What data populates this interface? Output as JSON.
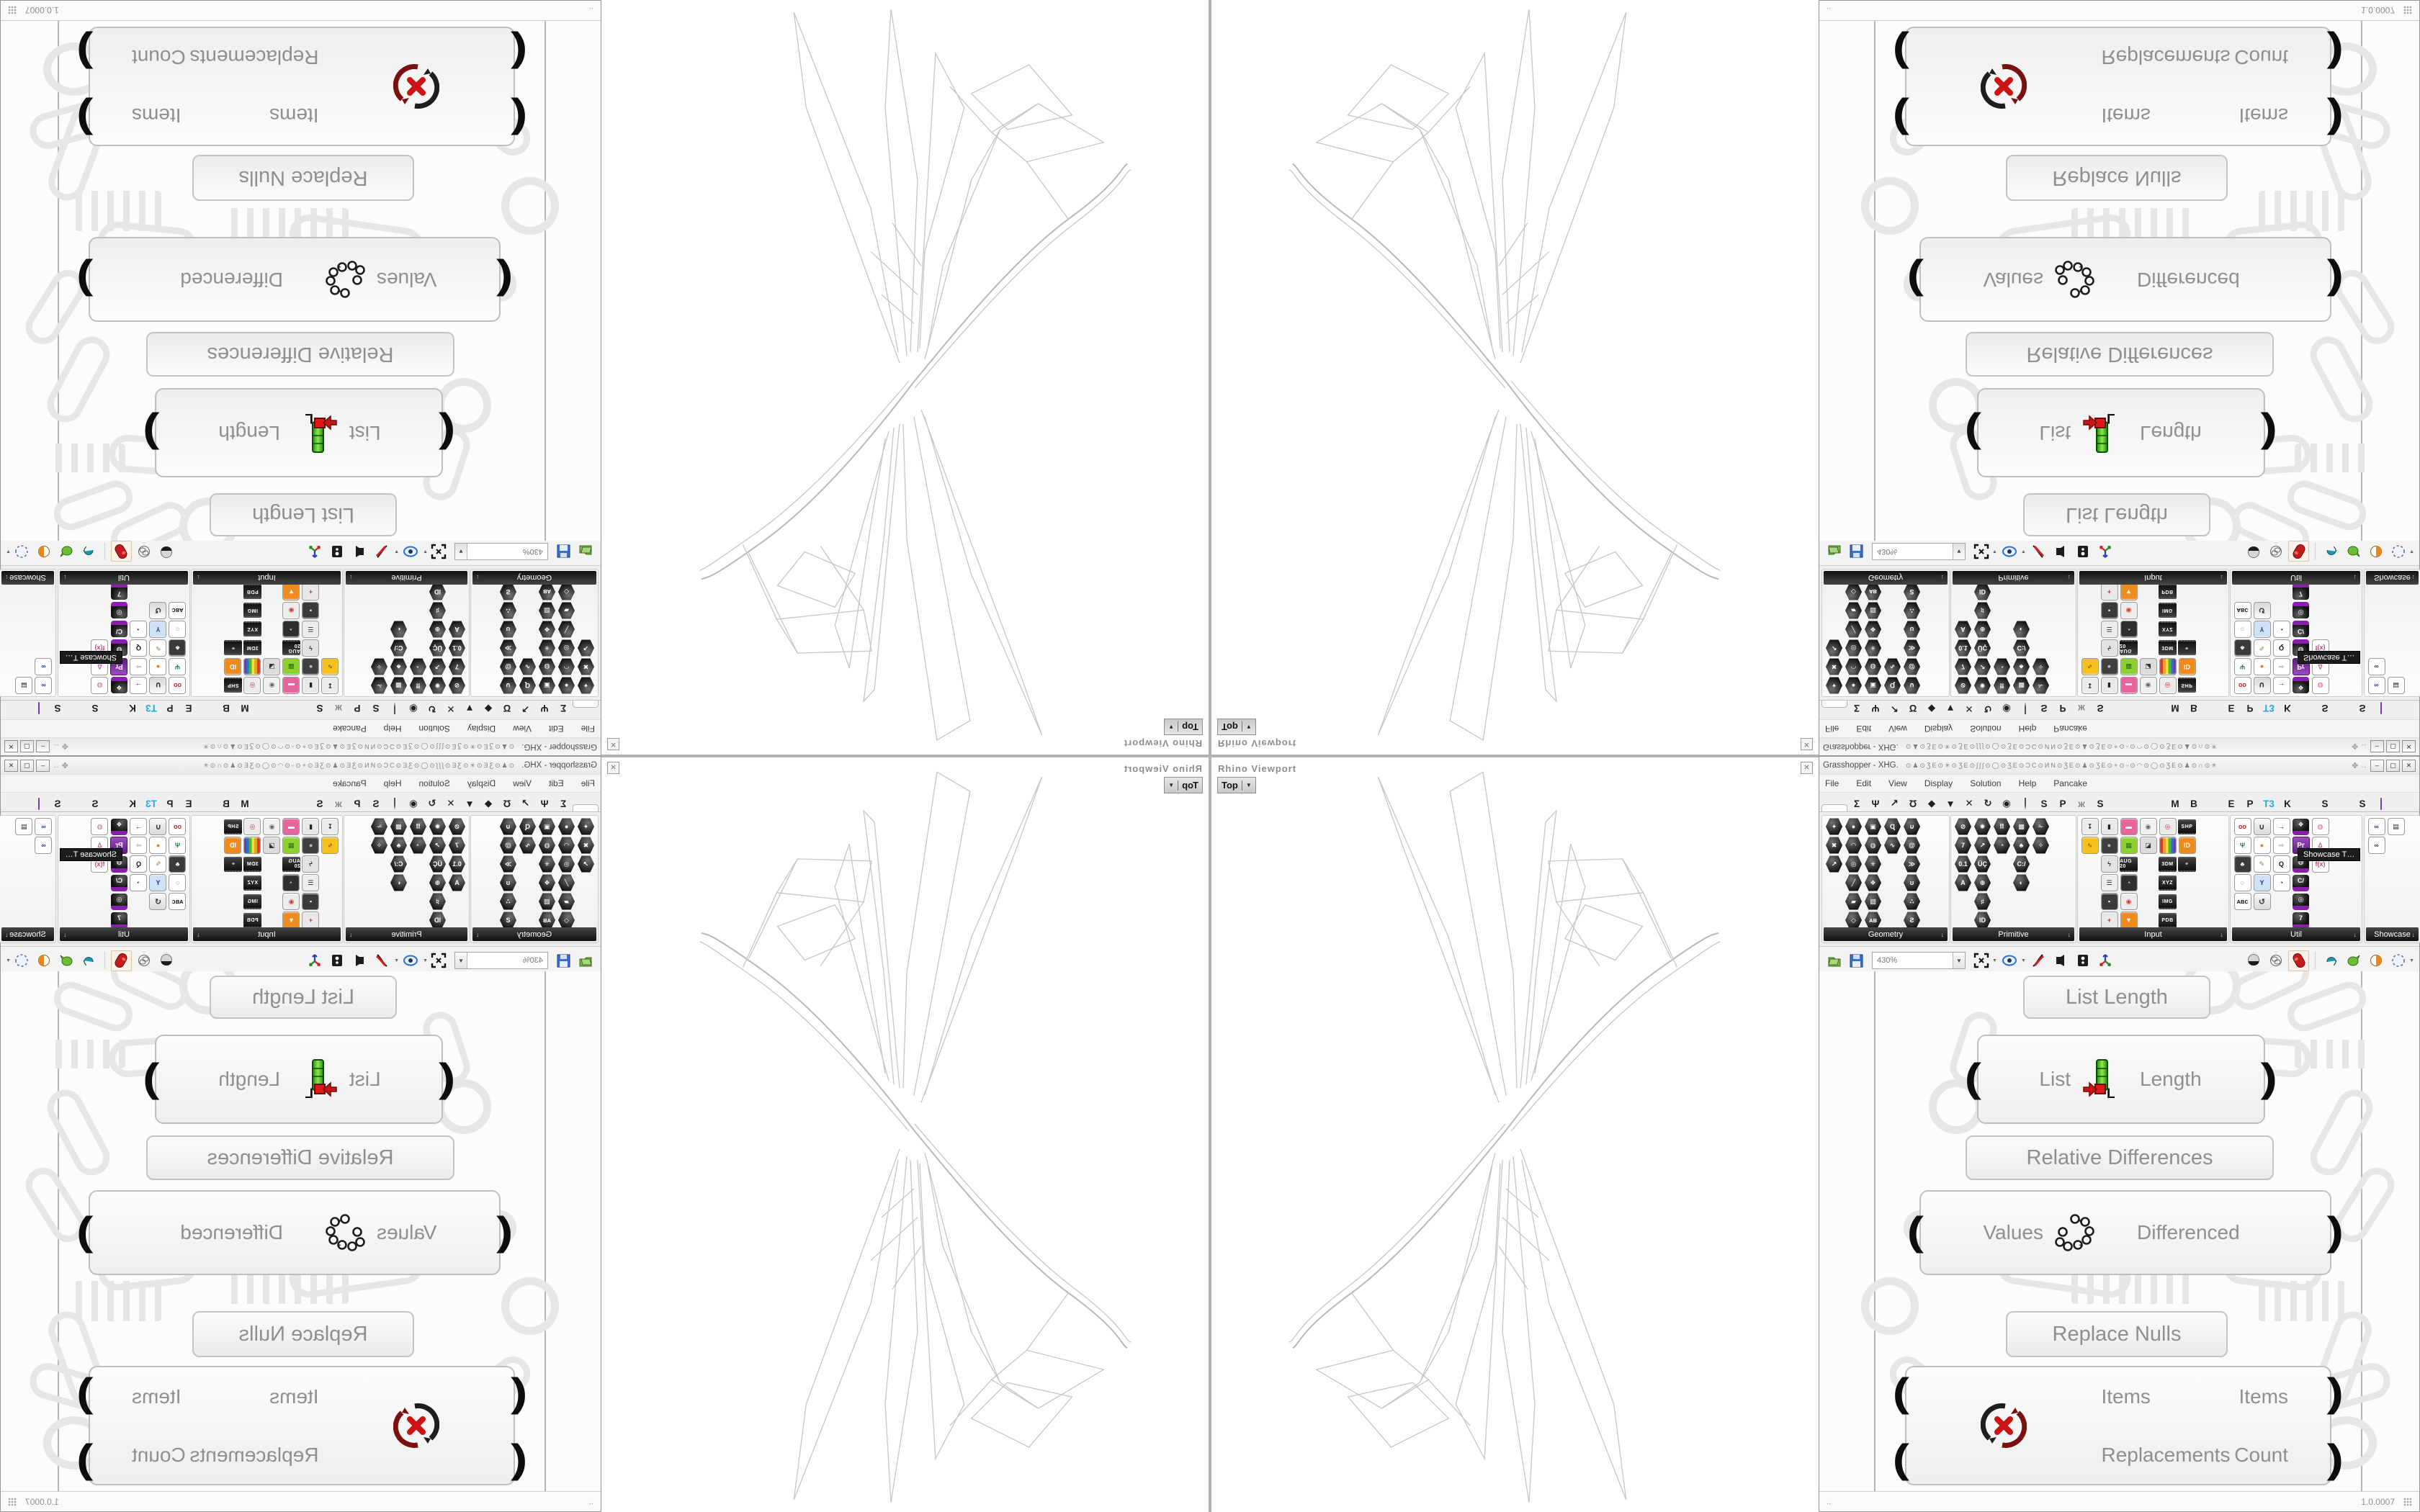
{
  "app": {
    "title": "Grasshopper - XHG.",
    "title_glyphs": "⊙♟⊙ƷE⊙✳⊙ƷE⊙ʃʃʃ⊙◯⊙ƷE⊙ƆC⊙ИN⊙ƷE⊙♟⊙ƷE⊙+⊙◦⊙◠⊙◯⊙ƷE⊙♟⊙∩⊙✳",
    "version": "1.0.0007",
    "status_left": "..",
    "controls": {
      "move": "✥",
      "more": "‥",
      "minimize": "–",
      "maximize": "▢",
      "close": "✕"
    }
  },
  "menu": {
    "items": [
      "File",
      "Edit",
      "View",
      "Display",
      "Solution",
      "Help",
      "Pancake"
    ]
  },
  "tabs": [
    {
      "n": "params",
      "k": "oct"
    },
    {
      "n": "maths",
      "g": "Σ"
    },
    {
      "n": "sets",
      "g": "Ψ"
    },
    {
      "n": "vector",
      "g": "↗"
    },
    {
      "n": "curve",
      "g": "Ʊ"
    },
    {
      "n": "surface",
      "g": "◆"
    },
    {
      "n": "mesh",
      "g": "▼"
    },
    {
      "n": "intersect",
      "g": "✕"
    },
    {
      "n": "transform",
      "g": "↻"
    },
    {
      "n": "display",
      "g": "◉"
    },
    {
      "n": "kangaroo",
      "k": "shield"
    },
    {
      "n": "tab-s1",
      "g": "S"
    },
    {
      "n": "tab-p1",
      "g": "P"
    },
    {
      "n": "insect",
      "g": "ж",
      "c": "#8a8a8a"
    },
    {
      "n": "tab-s2",
      "g": "S"
    },
    {
      "n": "turtle",
      "k": "blob",
      "c": "#2f9e86"
    },
    {
      "n": "dog",
      "k": "blob",
      "c": "#6b564a"
    },
    {
      "n": "bird",
      "k": "blob",
      "c": "#1b1b1b"
    },
    {
      "n": "tab-m",
      "g": "M"
    },
    {
      "n": "tab-b",
      "g": "B"
    },
    {
      "n": "spinner",
      "k": "blob",
      "c": "#9a9a9a"
    },
    {
      "n": "tab-e",
      "g": "E"
    },
    {
      "n": "tab-p2",
      "g": "P"
    },
    {
      "n": "t3",
      "g": "T3",
      "c": "#2aa7e0"
    },
    {
      "n": "tab-k",
      "g": "K"
    },
    {
      "n": "blue-square",
      "k": "sq",
      "c": "#1d66d0"
    },
    {
      "n": "tab-s3",
      "g": "S"
    },
    {
      "n": "grasshopper",
      "k": "blob",
      "c": "#46a42c"
    },
    {
      "n": "tab-s4",
      "g": "S"
    },
    {
      "n": "purple-p",
      "k": "tile"
    }
  ],
  "palette": {
    "tooltip": "Showcase T…",
    "panels": [
      {
        "name": "Geometry",
        "icons": [
          [
            "✦",
            "h"
          ],
          [
            "✖",
            "h"
          ],
          [
            "↗",
            "h"
          ],
          [
            "",
            "e"
          ],
          [
            "",
            "e"
          ],
          [
            "",
            "e"
          ],
          [
            "●",
            "h"
          ],
          [
            "◠",
            "h"
          ],
          [
            "◎",
            "h"
          ],
          [
            "╱",
            "h"
          ],
          [
            "▰",
            "h"
          ],
          [
            "◇",
            "h"
          ],
          [
            "▣",
            "h"
          ],
          [
            "◍",
            "h"
          ],
          [
            "✳",
            "h"
          ],
          [
            "❖",
            "h"
          ],
          [
            "▨",
            "h"
          ],
          [
            "ᴀʙ",
            "h"
          ],
          [
            "Ɋ",
            "h"
          ],
          [
            "∿",
            "h"
          ],
          [
            "",
            "e"
          ],
          [
            "",
            "e"
          ],
          [
            "",
            "e"
          ],
          [
            "",
            "e"
          ],
          [
            "∪",
            "h"
          ],
          [
            "@",
            "h"
          ],
          [
            "≫",
            "h"
          ],
          [
            "ʊ",
            "h"
          ],
          [
            "∴",
            "h"
          ],
          [
            "Ƨ",
            "h"
          ]
        ]
      },
      {
        "name": "Primitive",
        "icons": [
          [
            "⊘",
            "h"
          ],
          [
            "7",
            "h"
          ],
          [
            "0.1",
            "h"
          ],
          [
            "A",
            "h"
          ],
          [
            "",
            "e"
          ],
          [
            "",
            "e"
          ],
          [
            "✺",
            "h"
          ],
          [
            "↗",
            "h"
          ],
          [
            "ÜÇ",
            "h"
          ],
          [
            "⊕",
            "h"
          ],
          [
            "♯",
            "h"
          ],
          [
            "ID",
            "h"
          ],
          [
            "⠿",
            "h"
          ],
          [
            "◔",
            "h"
          ],
          [
            "",
            "e"
          ],
          [
            "",
            "e"
          ],
          [
            "",
            "e"
          ],
          [
            "",
            "e"
          ],
          [
            "▩",
            "h"
          ],
          [
            "♣",
            "h"
          ],
          [
            "C:/",
            "h"
          ],
          [
            "◐",
            "h"
          ],
          [
            "",
            "e"
          ],
          [
            "",
            "e"
          ],
          [
            "✁",
            "h"
          ],
          [
            "✧",
            "h"
          ],
          [
            "",
            "e"
          ],
          [
            "",
            "e"
          ],
          [
            "",
            "e"
          ],
          [
            "",
            "e"
          ]
        ]
      },
      {
        "name": "Input",
        "icons": [
          [
            "↧",
            "t",
            "#ececec",
            "#222"
          ],
          [
            "∿",
            "t",
            "#f6c01e",
            "#8a5a00"
          ],
          [
            "",
            "e"
          ],
          [
            "",
            "e"
          ],
          [
            "",
            "e"
          ],
          [
            "",
            "e"
          ],
          [
            "▮",
            "t",
            "#e9e9e9",
            "#222"
          ],
          [
            "●",
            "t",
            "#3f3f3f",
            "#bbb"
          ],
          [
            "ϟ",
            "t",
            "#e2e2e2",
            "#333"
          ],
          [
            "☰",
            "t",
            "#ececec",
            "#333"
          ],
          [
            "▪",
            "t",
            "#3a3a3a",
            "#fff"
          ],
          [
            "+",
            "t",
            "#e8e8e8",
            "#c33"
          ],
          [
            "▬",
            "t",
            "#e8649e",
            "#fff"
          ],
          [
            "▦",
            "t",
            "#8cd12e",
            "#2a6a1a"
          ],
          [
            "AUG 20",
            "c"
          ],
          [
            "◔",
            "t",
            "#2e2e2e",
            "#eee"
          ],
          [
            "◉",
            "t",
            "#ececec",
            "#d33"
          ],
          [
            "▼",
            "t",
            "#ef8b1d",
            "#fff"
          ],
          [
            "◉",
            "t",
            "#f0f0f0",
            "#666"
          ],
          [
            "◪",
            "t",
            "#dcdcdc",
            "#333"
          ],
          [
            "",
            "e"
          ],
          [
            "",
            "e"
          ],
          [
            "",
            "e"
          ],
          [
            "",
            "e"
          ],
          [
            "◎",
            "t",
            "#ececec",
            "#c33"
          ],
          [
            "▥",
            "r"
          ],
          [
            "3DM",
            "c"
          ],
          [
            "XYZ",
            "c"
          ],
          [
            "IMG",
            "c"
          ],
          [
            "PDB",
            "c"
          ],
          [
            "SHP",
            "c"
          ],
          [
            "ID",
            "t",
            "#ef8b1d",
            "#fff"
          ],
          [
            "⚭",
            "c"
          ],
          [
            "",
            "e"
          ],
          [
            "",
            "e"
          ],
          [
            "",
            "e"
          ]
        ]
      },
      {
        "name": "Util",
        "icons": [
          [
            "oo",
            "t",
            "#ffffff",
            "#c22222"
          ],
          [
            "Ψ",
            "t",
            "#ffffff",
            "#2a7a4a"
          ],
          [
            "♣",
            "t",
            "#3a3a3a",
            "#fff"
          ],
          [
            "○",
            "t",
            "#ffffff",
            "#888"
          ],
          [
            "ᴀʙᴄ",
            "t",
            "#ffffff",
            "#222"
          ],
          [
            "",
            "e"
          ],
          [
            "∪",
            "x"
          ],
          [
            "●",
            "t",
            "#ffffff",
            "#f07818"
          ],
          [
            "✎",
            "t",
            "#ffffff",
            "#a8733a"
          ],
          [
            "Y",
            "t",
            "#cfe0f7",
            "#1a3a8a"
          ],
          [
            "↺",
            "x"
          ],
          [
            "",
            "e"
          ],
          [
            "→",
            "t",
            "#ffffff",
            "#111"
          ],
          [
            "⇨",
            "t",
            "#ffffff",
            "#999"
          ],
          [
            "Q",
            "t",
            "#ffffff",
            "#111"
          ],
          [
            "◔",
            "t",
            "#ffffff",
            "#111"
          ],
          [
            "",
            "e"
          ],
          [
            "",
            "e"
          ],
          [
            "❖",
            "p"
          ],
          [
            "Pr",
            "pr"
          ],
          [
            "◍",
            "p"
          ],
          [
            "C/",
            "p"
          ],
          [
            "◎",
            "p"
          ],
          [
            "7",
            "p"
          ],
          [
            "◍",
            "t",
            "#ffffff",
            "#d06080"
          ],
          [
            "Δ",
            "t",
            "#ffffff",
            "#c85a9e"
          ],
          [
            "f(x)",
            "t",
            "#ffffff",
            "#c2487e"
          ],
          [
            "",
            "e"
          ],
          [
            "",
            "e"
          ],
          [
            "",
            "e"
          ]
        ]
      },
      {
        "name": "Showcase",
        "icons": [
          [
            "∞",
            "t",
            "#ffffff",
            "#1a3a8a"
          ],
          [
            "∞",
            "t",
            "#ffffff",
            "#1a3a8a"
          ],
          [
            "",
            "e"
          ],
          [
            "",
            "e"
          ],
          [
            "",
            "e"
          ],
          [
            "",
            "e"
          ],
          [
            "▤",
            "t",
            "#ffffff",
            "#222"
          ],
          [
            "",
            "e"
          ],
          [
            "",
            "e"
          ],
          [
            "",
            "e"
          ],
          [
            "",
            "e"
          ],
          [
            "",
            "e"
          ]
        ]
      }
    ]
  },
  "toolbar": {
    "zoom": "430%"
  },
  "canvas": {
    "panels": [
      "List Length",
      "Relative Differences",
      "Replace Nulls"
    ],
    "components": {
      "list_length": {
        "inputs": [
          "List"
        ],
        "outputs": [
          "Length"
        ]
      },
      "relative_differences": {
        "inputs": [
          "Values"
        ],
        "outputs": [
          "Differenced"
        ]
      },
      "replace_nulls": {
        "inputs": [
          "Items",
          "Replacements"
        ],
        "outputs": [
          "Items",
          "Count"
        ]
      }
    }
  },
  "viewport": {
    "label": "Rhino Viewport",
    "view": "Top"
  }
}
